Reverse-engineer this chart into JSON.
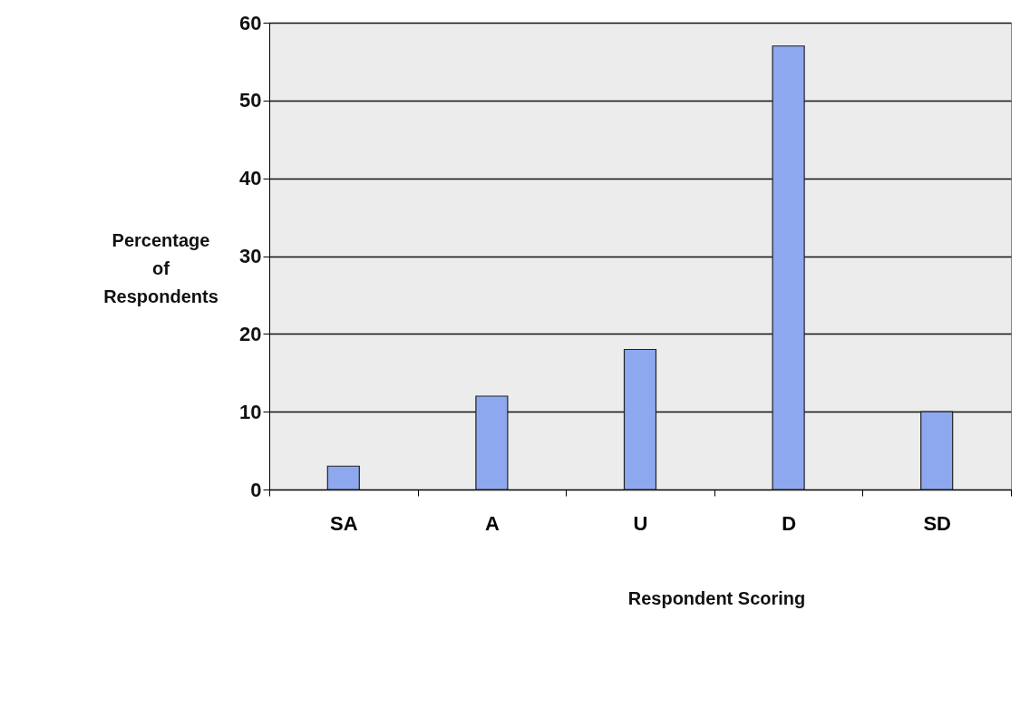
{
  "chart_data": {
    "type": "bar",
    "xlabel": "Respondent Scoring",
    "ylabel": "Percentage of Respondents",
    "categories": [
      "SA",
      "A",
      "U",
      "D",
      "SD"
    ],
    "values": [
      3,
      12,
      18,
      57,
      10
    ],
    "color": "#8ea8f0",
    "ylim": [
      0,
      60
    ],
    "yticks": [
      0,
      10,
      20,
      30,
      40,
      50,
      60
    ],
    "grid": "y"
  }
}
